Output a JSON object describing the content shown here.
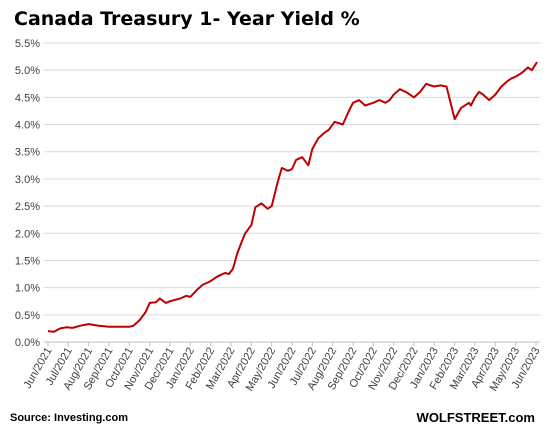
{
  "chart_data": {
    "type": "line",
    "title": "Canada Treasury 1- Year Yield %",
    "xlabel": "",
    "ylabel": "",
    "ylim": [
      0,
      5.5
    ],
    "yticks": [
      "0.0%",
      "0.5%",
      "1.0%",
      "1.5%",
      "2.0%",
      "2.5%",
      "3.0%",
      "3.5%",
      "4.0%",
      "4.5%",
      "5.0%",
      "5.5%"
    ],
    "xticks": [
      "Jun/2021",
      "Jul/2021",
      "Aug/2021",
      "Sep/2021",
      "Oct/2021",
      "Nov/2021",
      "Dec/2021",
      "Jan/2022",
      "Feb/2022",
      "Mar/2022",
      "Apr/2022",
      "May/2022",
      "Jun/2022",
      "Jul/2022",
      "Aug/2022",
      "Sep/2022",
      "Oct/2022",
      "Nov/2022",
      "Dec/2022",
      "Jan/2023",
      "Feb/2023",
      "Mar/2023",
      "Apr/2023",
      "May/2023",
      "Jun/2023"
    ],
    "grid": true,
    "line_color": "#c00000",
    "series": [
      {
        "name": "",
        "x": [
          0,
          0.3,
          0.6,
          0.9,
          1.2,
          1.6,
          2.0,
          2.5,
          3.0,
          3.5,
          4.0,
          4.2,
          4.5,
          4.8,
          5.0,
          5.3,
          5.5,
          5.8,
          6.0,
          6.5,
          6.8,
          7.0,
          7.3,
          7.6,
          8.0,
          8.3,
          8.7,
          8.9,
          9.1,
          9.3,
          9.5,
          9.7,
          10.0,
          10.2,
          10.5,
          10.8,
          11.0,
          11.3,
          11.5,
          11.8,
          12.0,
          12.2,
          12.5,
          12.8,
          13.0,
          13.3,
          13.6,
          13.8,
          14.1,
          14.5,
          14.8,
          15.0,
          15.3,
          15.6,
          16.0,
          16.3,
          16.6,
          16.8,
          17.0,
          17.3,
          17.6,
          17.8,
          18.0,
          18.3,
          18.6,
          18.8,
          19.0,
          19.3,
          19.6,
          20.0,
          20.3,
          20.7,
          20.8,
          21.0,
          21.2,
          21.4,
          21.7,
          22.0,
          22.3,
          22.6,
          22.8,
          23.0,
          23.3,
          23.6,
          23.8,
          24.0,
          24.05
        ],
        "values": [
          0.2,
          0.19,
          0.25,
          0.27,
          0.26,
          0.3,
          0.33,
          0.3,
          0.28,
          0.28,
          0.28,
          0.3,
          0.4,
          0.55,
          0.72,
          0.73,
          0.8,
          0.72,
          0.75,
          0.8,
          0.85,
          0.83,
          0.95,
          1.05,
          1.12,
          1.2,
          1.27,
          1.25,
          1.35,
          1.62,
          1.82,
          2.0,
          2.15,
          2.48,
          2.55,
          2.45,
          2.5,
          2.95,
          3.2,
          3.15,
          3.18,
          3.35,
          3.4,
          3.25,
          3.55,
          3.75,
          3.85,
          3.9,
          4.05,
          4.0,
          4.25,
          4.4,
          4.45,
          4.35,
          4.4,
          4.45,
          4.4,
          4.45,
          4.55,
          4.65,
          4.6,
          4.55,
          4.5,
          4.6,
          4.75,
          4.72,
          4.7,
          4.72,
          4.7,
          4.1,
          4.3,
          4.4,
          4.35,
          4.5,
          4.6,
          4.55,
          4.45,
          4.55,
          4.7,
          4.8,
          4.85,
          4.88,
          4.95,
          5.05,
          5.0,
          5.12,
          5.15
        ]
      }
    ]
  },
  "footer": {
    "source": "Source: Investing.com",
    "brand": "WOLFSTREET.com"
  }
}
